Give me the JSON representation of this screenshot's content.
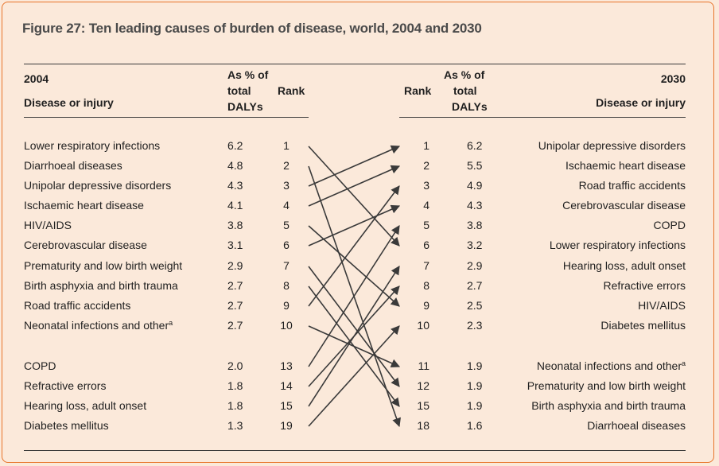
{
  "title": "Figure 27: Ten leading causes of burden of disease, world, 2004 and 2030",
  "left_header": {
    "year": "2004",
    "disease_label": "Disease or injury",
    "pct_label_1": "As % of",
    "pct_label_2": "total",
    "pct_label_3": "DALYs",
    "rank_label": "Rank"
  },
  "right_header": {
    "year": "2030",
    "disease_label": "Disease or injury",
    "pct_label_1": "As % of",
    "pct_label_2": "total",
    "pct_label_3": "DALYs",
    "rank_label": "Rank"
  },
  "left_rows": [
    {
      "name": "Lower respiratory infections",
      "pct": "6.2",
      "rank": "1"
    },
    {
      "name": "Diarrhoeal diseases",
      "pct": "4.8",
      "rank": "2"
    },
    {
      "name": "Unipolar depressive disorders",
      "pct": "4.3",
      "rank": "3"
    },
    {
      "name": "Ischaemic heart disease",
      "pct": "4.1",
      "rank": "4"
    },
    {
      "name": "HIV/AIDS",
      "pct": "3.8",
      "rank": "5"
    },
    {
      "name": "Cerebrovascular disease",
      "pct": "3.1",
      "rank": "6"
    },
    {
      "name": "Prematurity and low birth weight",
      "pct": "2.9",
      "rank": "7"
    },
    {
      "name": "Birth asphyxia and birth trauma",
      "pct": "2.7",
      "rank": "8"
    },
    {
      "name": "Road traffic accidents",
      "pct": "2.7",
      "rank": "9"
    },
    {
      "name": "Neonatal infections and other",
      "sup": "a",
      "pct": "2.7",
      "rank": "10"
    },
    {
      "name": "COPD",
      "pct": "2.0",
      "rank": "13"
    },
    {
      "name": "Refractive errors",
      "pct": "1.8",
      "rank": "14"
    },
    {
      "name": "Hearing loss, adult onset",
      "pct": "1.8",
      "rank": "15"
    },
    {
      "name": "Diabetes mellitus",
      "pct": "1.3",
      "rank": "19"
    }
  ],
  "right_rows": [
    {
      "rank": "1",
      "pct": "6.2",
      "name": "Unipolar depressive disorders"
    },
    {
      "rank": "2",
      "pct": "5.5",
      "name": "Ischaemic heart disease"
    },
    {
      "rank": "3",
      "pct": "4.9",
      "name": "Road traffic accidents"
    },
    {
      "rank": "4",
      "pct": "4.3",
      "name": "Cerebrovascular disease"
    },
    {
      "rank": "5",
      "pct": "3.8",
      "name": "COPD"
    },
    {
      "rank": "6",
      "pct": "3.2",
      "name": "Lower respiratory infections"
    },
    {
      "rank": "7",
      "pct": "2.9",
      "name": "Hearing loss, adult onset"
    },
    {
      "rank": "8",
      "pct": "2.7",
      "name": "Refractive errors"
    },
    {
      "rank": "9",
      "pct": "2.5",
      "name": "HIV/AIDS"
    },
    {
      "rank": "10",
      "pct": "2.3",
      "name": "Diabetes mellitus"
    },
    {
      "rank": "11",
      "pct": "1.9",
      "name": "Neonatal infections and other",
      "sup": "a"
    },
    {
      "rank": "12",
      "pct": "1.9",
      "name": "Prematurity and low birth weight"
    },
    {
      "rank": "15",
      "pct": "1.9",
      "name": "Birth asphyxia and birth trauma"
    },
    {
      "rank": "18",
      "pct": "1.6",
      "name": "Diarrhoeal diseases"
    }
  ],
  "links": [
    {
      "from": 0,
      "to": 5
    },
    {
      "from": 1,
      "to": 13
    },
    {
      "from": 2,
      "to": 0
    },
    {
      "from": 3,
      "to": 1
    },
    {
      "from": 4,
      "to": 8
    },
    {
      "from": 5,
      "to": 3
    },
    {
      "from": 6,
      "to": 11
    },
    {
      "from": 7,
      "to": 12
    },
    {
      "from": 8,
      "to": 2
    },
    {
      "from": 9,
      "to": 10
    },
    {
      "from": 10,
      "to": 4
    },
    {
      "from": 11,
      "to": 7
    },
    {
      "from": 12,
      "to": 6
    },
    {
      "from": 13,
      "to": 9
    }
  ],
  "colors": {
    "background": "#fbe9da",
    "border": "#e8742a",
    "arrow": "#3a3a3a"
  }
}
